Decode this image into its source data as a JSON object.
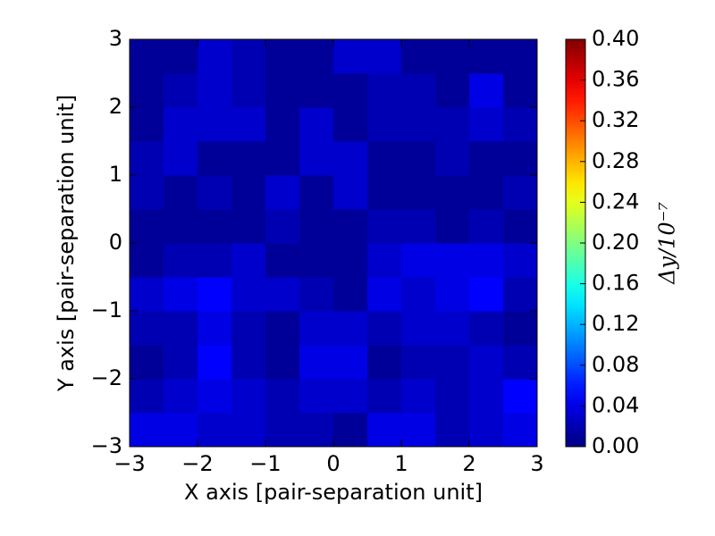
{
  "chart_data": {
    "type": "heatmap",
    "xlabel": "X axis [pair-separation unit]",
    "ylabel": "Y axis [pair-separation unit]",
    "colorbar_label": "Δy/10⁻⁷",
    "colormap": "jet",
    "xlim": [
      -3,
      3
    ],
    "ylim": [
      -3,
      3
    ],
    "xticks": [
      {
        "value": -3,
        "label": "−3"
      },
      {
        "value": -2,
        "label": "−2"
      },
      {
        "value": -1,
        "label": "−1"
      },
      0,
      1,
      2,
      3
    ],
    "yticks": [
      {
        "value": -3,
        "label": "−3"
      },
      {
        "value": -2,
        "label": "−2"
      },
      {
        "value": -1,
        "label": "−1"
      },
      0,
      1,
      2,
      3
    ],
    "clim": [
      0,
      0.4
    ],
    "cticks": [
      {
        "value": 0,
        "label": "0.00"
      },
      {
        "value": 0.04,
        "label": "0.04"
      },
      {
        "value": 0.08,
        "label": "0.08"
      },
      {
        "value": 0.12,
        "label": "0.12"
      },
      {
        "value": 0.16,
        "label": "0.16"
      },
      {
        "value": 0.2,
        "label": "0.20"
      },
      {
        "value": 0.24,
        "label": "0.24"
      },
      {
        "value": 0.28,
        "label": "0.28"
      },
      {
        "value": 0.32,
        "label": "0.32"
      },
      {
        "value": 0.36,
        "label": "0.36"
      },
      {
        "value": 0.4,
        "label": "0.40"
      }
    ],
    "xbins": [
      -3,
      -2.5,
      -2,
      -1.5,
      -1,
      -0.5,
      0,
      0.5,
      1,
      1.5,
      2,
      2.5,
      3
    ],
    "ybins": [
      -3,
      -2.5,
      -2,
      -1.5,
      -1,
      -0.5,
      0,
      0.5,
      1,
      1.5,
      2,
      2.5,
      3
    ],
    "z": [
      [
        0.04,
        0.04,
        0.03,
        0.03,
        0.02,
        0.02,
        0.01,
        0.04,
        0.04,
        0.02,
        0.03,
        0.04
      ],
      [
        0.02,
        0.03,
        0.04,
        0.03,
        0.02,
        0.03,
        0.03,
        0.02,
        0.03,
        0.02,
        0.03,
        0.05
      ],
      [
        0.01,
        0.02,
        0.05,
        0.02,
        0.01,
        0.04,
        0.04,
        0.01,
        0.02,
        0.02,
        0.03,
        0.02
      ],
      [
        0.02,
        0.02,
        0.04,
        0.02,
        0.01,
        0.03,
        0.03,
        0.02,
        0.03,
        0.03,
        0.02,
        0.01
      ],
      [
        0.03,
        0.04,
        0.05,
        0.03,
        0.03,
        0.02,
        0.01,
        0.04,
        0.03,
        0.04,
        0.05,
        0.02
      ],
      [
        0.01,
        0.02,
        0.02,
        0.03,
        0.01,
        0.01,
        0.01,
        0.03,
        0.04,
        0.04,
        0.04,
        0.03
      ],
      [
        0.01,
        0.01,
        0.01,
        0.01,
        0.02,
        0.01,
        0.01,
        0.02,
        0.02,
        0.01,
        0.02,
        0.01
      ],
      [
        0.02,
        0.01,
        0.02,
        0.01,
        0.03,
        0.01,
        0.03,
        0.01,
        0.01,
        0.01,
        0.01,
        0.02
      ],
      [
        0.02,
        0.03,
        0.01,
        0.01,
        0.01,
        0.03,
        0.03,
        0.01,
        0.01,
        0.02,
        0.01,
        0.01
      ],
      [
        0.01,
        0.03,
        0.03,
        0.03,
        0.01,
        0.03,
        0.01,
        0.02,
        0.02,
        0.02,
        0.03,
        0.02
      ],
      [
        0.01,
        0.02,
        0.03,
        0.02,
        0.01,
        0.01,
        0.01,
        0.02,
        0.02,
        0.01,
        0.04,
        0.01
      ],
      [
        0.01,
        0.01,
        0.03,
        0.02,
        0.01,
        0.01,
        0.03,
        0.03,
        0.01,
        0.01,
        0.01,
        0.01
      ]
    ]
  }
}
